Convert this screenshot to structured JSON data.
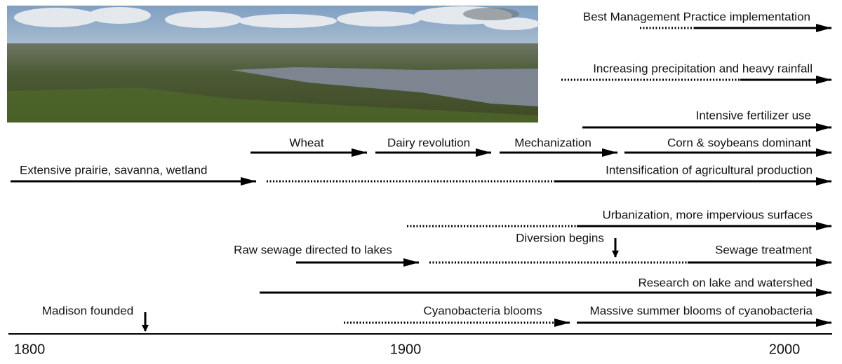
{
  "labels": [
    "Best Management Practice implementation",
    "Increasing precipitation and heavy rainfall",
    "Intensive fertilizer use",
    "Wheat",
    "Dairy revolution",
    "Mechanization",
    "Corn & soybeans dominant",
    "Extensive prairie, savanna, wetland",
    "Intensification of agricultural production",
    "Urbanization, more impervious surfaces",
    "Raw sewage directed to lakes",
    "Diversion begins",
    "Sewage treatment",
    "Research on lake and watershed",
    "Madison founded",
    "Cyanobacteria blooms",
    "Massive summer blooms of cyanobacteria"
  ],
  "axis": {
    "labels": [
      "1800",
      "1900",
      "2000"
    ]
  }
}
